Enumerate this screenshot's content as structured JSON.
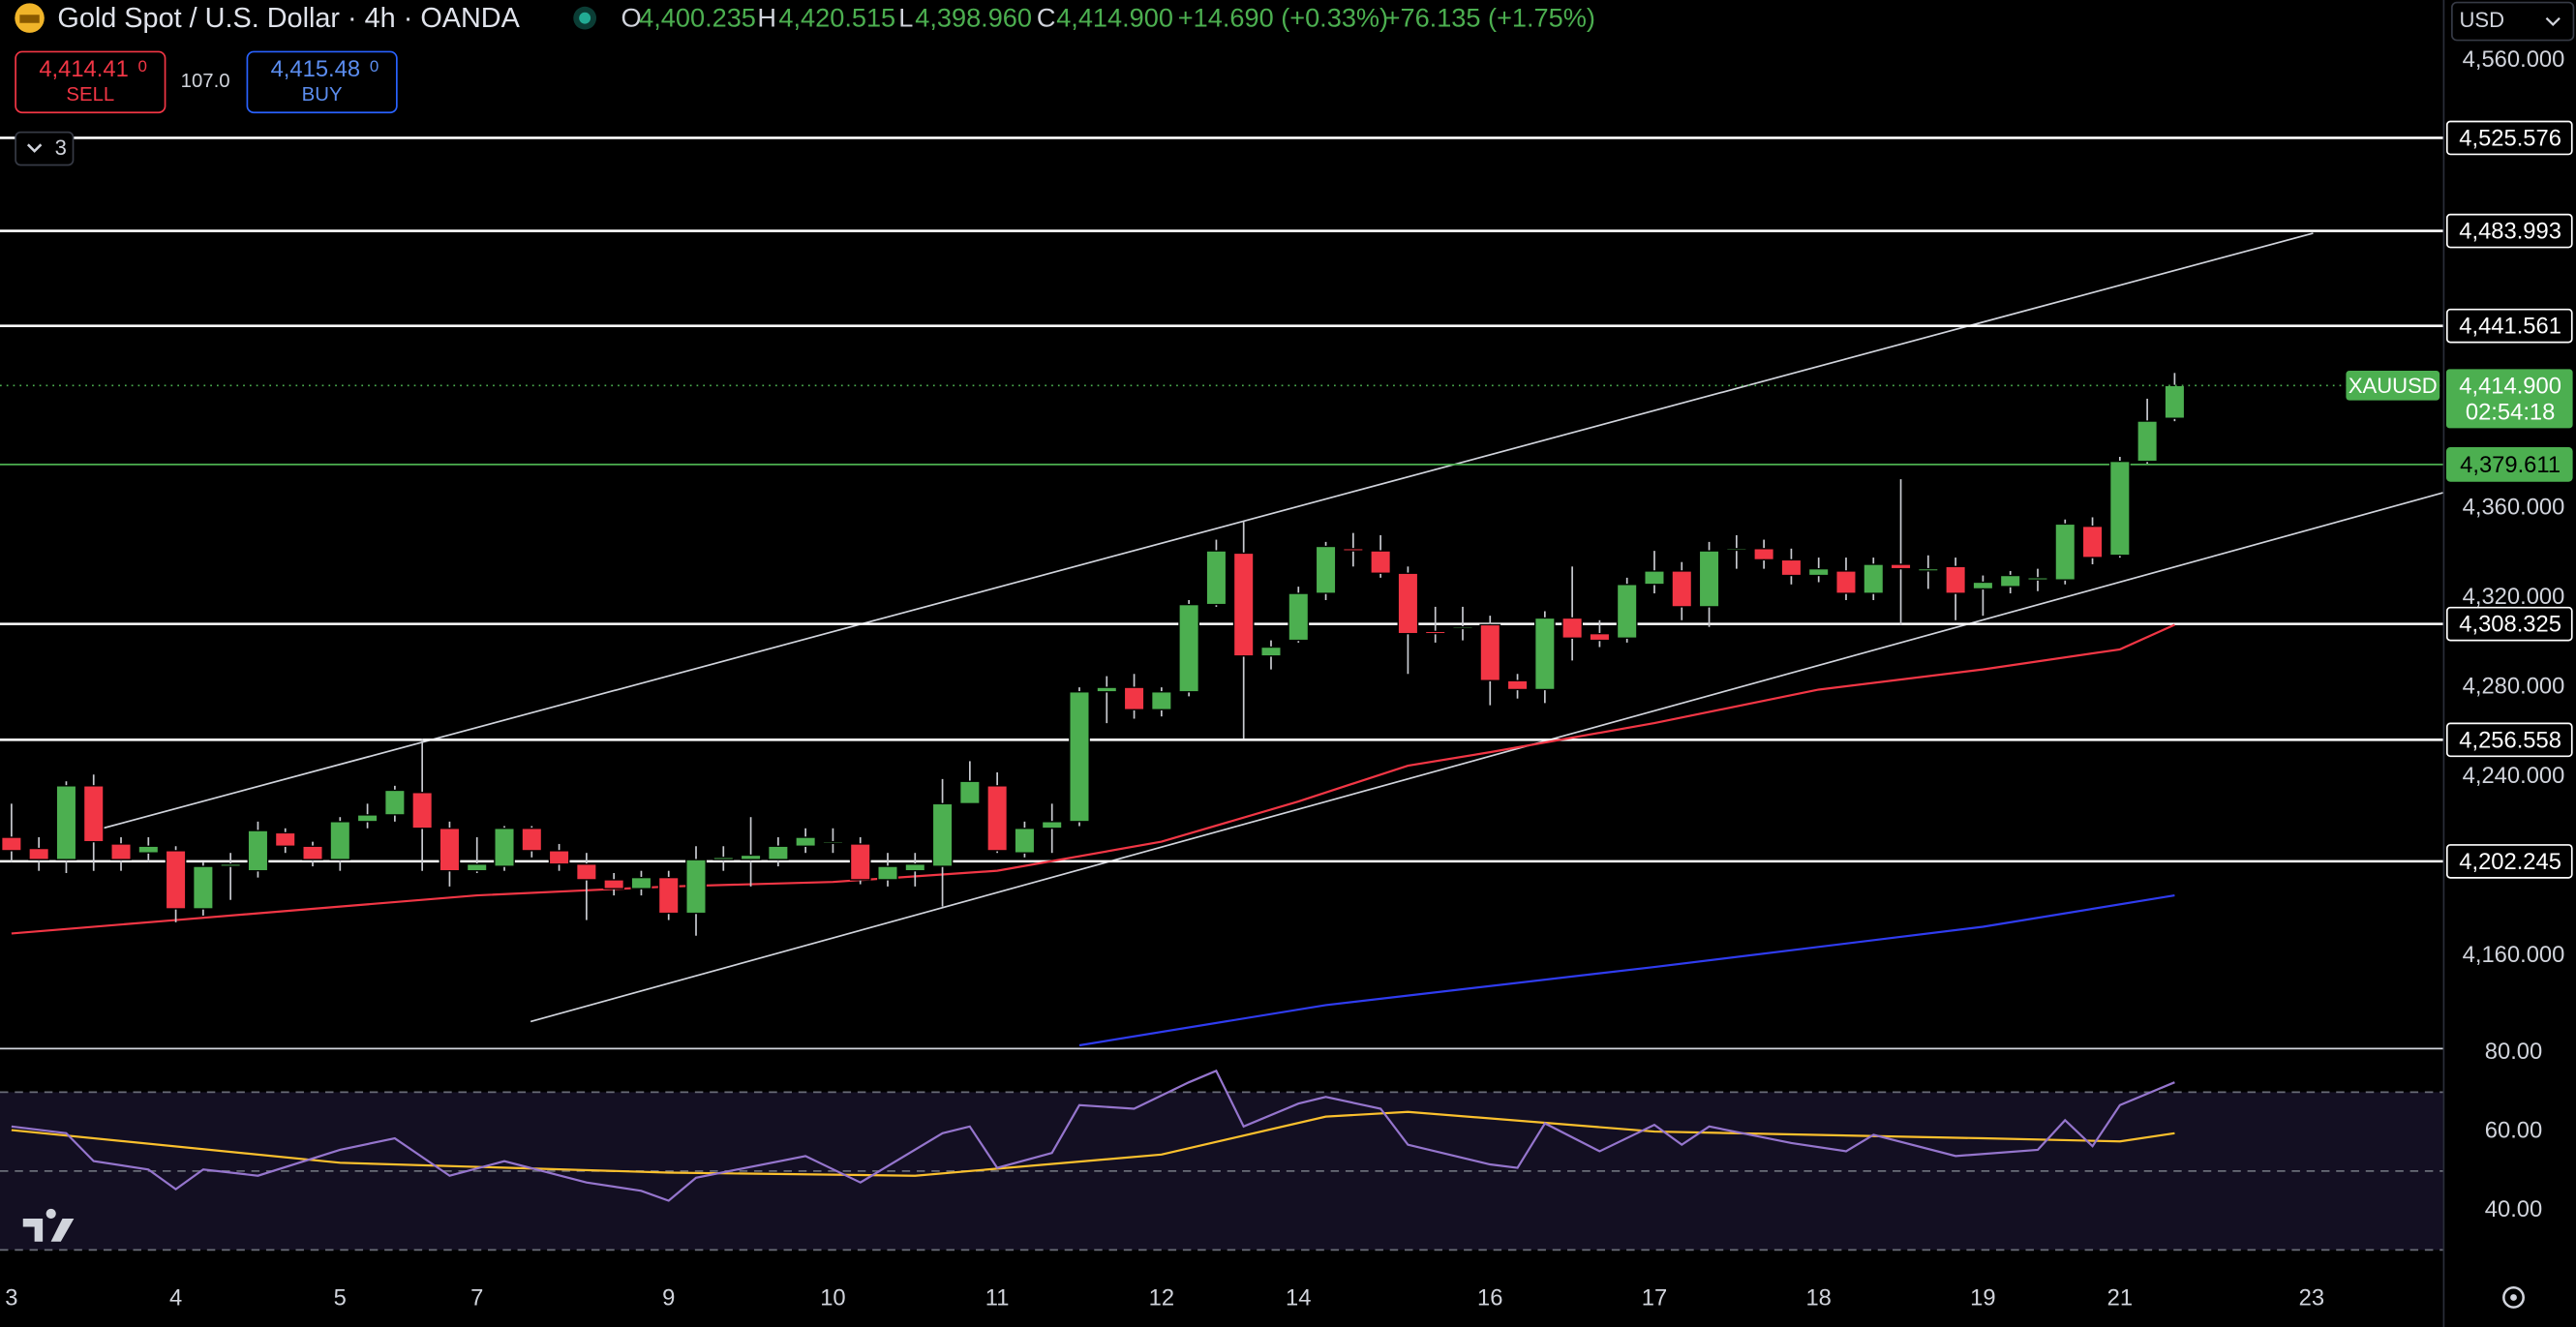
{
  "header": {
    "symbol": "Gold Spot / U.S. Dollar · 4h · OANDA",
    "ohlc": [
      {
        "label": "O",
        "value": "4,400.235"
      },
      {
        "label": "H",
        "value": "4,420.515"
      },
      {
        "label": "L",
        "value": "4,398.960"
      },
      {
        "label": "C",
        "value": "4,414.900"
      }
    ],
    "change": "+14.690 (+0.33%)",
    "change_long": "+76.135 (+1.75%)"
  },
  "trade": {
    "sell_price": "4,414.41",
    "sell_sup": "0",
    "sell_label": "SELL",
    "spread": "107.0",
    "buy_price": "4,415.48",
    "buy_sup": "0",
    "buy_label": "BUY"
  },
  "indicator_count": "3",
  "currency": "USD",
  "chart_data": {
    "type": "candlestick",
    "categories": [
      "3",
      null,
      null,
      null,
      null,
      null,
      "4",
      null,
      null,
      null,
      null,
      null,
      "5",
      null,
      null,
      null,
      null,
      "7",
      null,
      null,
      null,
      null,
      null,
      null,
      "9",
      null,
      null,
      null,
      null,
      null,
      "10",
      null,
      null,
      null,
      null,
      null,
      "11",
      null,
      null,
      null,
      null,
      null,
      "12",
      null,
      null,
      null,
      null,
      "14",
      null,
      null,
      null,
      null,
      null,
      null,
      "16",
      null,
      null,
      null,
      null,
      null,
      "17",
      null,
      null,
      null,
      null,
      null,
      "18",
      null,
      null,
      null,
      null,
      null,
      "19",
      null,
      null,
      null,
      null,
      "21",
      null,
      null,
      null,
      null,
      null,
      null,
      "23"
    ],
    "open": [
      4213,
      4208,
      4203,
      4236,
      4210,
      4206,
      4207,
      4181,
      4200,
      4198,
      4215,
      4209,
      4203,
      4220,
      4223,
      4233,
      4217,
      4198,
      4200,
      4217,
      4207,
      4201,
      4194,
      4190,
      4195,
      4179,
      4203,
      4203,
      4203,
      4209,
      4211,
      4210,
      4194,
      4198,
      4200,
      4228,
      4236,
      4206,
      4217,
      4220,
      4278,
      4280,
      4270,
      4278,
      4317,
      4340,
      4294,
      4301,
      4322,
      4342,
      4341,
      4331,
      4305,
      4307,
      4308,
      4283,
      4279,
      4311,
      4304,
      4302,
      4326,
      4332,
      4316,
      4342,
      4342,
      4337,
      4330,
      4332,
      4322,
      4335,
      4332,
      4334,
      4324,
      4325,
      4328,
      4328,
      4352,
      4339,
      4381,
      4400.235,
      null,
      null,
      null,
      null,
      null
    ],
    "high": [
      4228,
      4213,
      4238,
      4241,
      4213,
      4213,
      4209,
      4202,
      4206,
      4220,
      4217,
      4211,
      4222,
      4228,
      4236,
      4257,
      4220,
      4213,
      4218,
      4218,
      4210,
      4206,
      4197,
      4198,
      4198,
      4209,
      4209,
      4222,
      4213,
      4217,
      4217,
      4213,
      4206,
      4206,
      4239,
      4247,
      4242,
      4220,
      4228,
      4280,
      4285,
      4286,
      4280,
      4319,
      4346,
      4354,
      4301,
      4325,
      4345,
      4349,
      4348,
      4334,
      4316,
      4316,
      4312,
      4286,
      4314,
      4334,
      4310,
      4329,
      4341,
      4336,
      4345,
      4348,
      4346,
      4342,
      4338,
      4338,
      4338,
      4373,
      4339,
      4338,
      4330,
      4332,
      4333,
      4355,
      4356,
      4383,
      4409,
      4420.515,
      null,
      null,
      null,
      null,
      null
    ],
    "low": [
      4202,
      4198,
      4197,
      4198,
      4198,
      4202,
      4175,
      4178,
      4185,
      4195,
      4206,
      4200,
      4198,
      4217,
      4220,
      4198,
      4191,
      4197,
      4198,
      4204,
      4198,
      4176,
      4187,
      4187,
      4176,
      4169,
      4198,
      4191,
      4200,
      4206,
      4206,
      4192,
      4191,
      4191,
      4182,
      4228,
      4206,
      4204,
      4206,
      4218,
      4264,
      4266,
      4267,
      4276,
      4316,
      4257,
      4288,
      4300,
      4319,
      4334,
      4329,
      4286,
      4300,
      4301,
      4272,
      4275,
      4273,
      4292,
      4298,
      4300,
      4322,
      4310,
      4307,
      4333,
      4333,
      4326,
      4327,
      4319,
      4319,
      4308,
      4324,
      4310,
      4312,
      4322,
      4323,
      4326,
      4335,
      4338,
      4380,
      4398.96,
      null,
      null,
      null,
      null,
      null
    ],
    "close": [
      4207,
      4203,
      4236,
      4211,
      4203,
      4209,
      4181,
      4200,
      4201,
      4216,
      4209,
      4203,
      4220,
      4223,
      4234,
      4217,
      4198,
      4201,
      4217,
      4207,
      4201,
      4194,
      4190,
      4195,
      4179,
      4203,
      4204,
      4205,
      4209,
      4213,
      4211,
      4194,
      4200,
      4201,
      4228,
      4238,
      4207,
      4217,
      4220,
      4278,
      4280,
      4270,
      4278,
      4317,
      4341,
      4294,
      4298,
      4322,
      4343,
      4341,
      4331,
      4304,
      4304,
      4307,
      4283,
      4279,
      4311,
      4302,
      4301,
      4326,
      4332,
      4316,
      4341,
      4342,
      4337,
      4330,
      4333,
      4322,
      4335,
      4333,
      4333,
      4322,
      4327,
      4330,
      4329,
      4353,
      4338,
      4381,
      4399,
      4414.9,
      null,
      null,
      null,
      null,
      null
    ],
    "up_color": "#4caf50",
    "down_color": "#f23645",
    "wick_color": "#c8cad0",
    "ylim": [
      4118.9,
      4587.2
    ],
    "yticks": [
      {
        "value": 4560,
        "label": "4,560.000"
      },
      {
        "value": 4360,
        "label": "4,360.000"
      },
      {
        "value": 4320,
        "label": "4,320.000"
      },
      {
        "value": 4280,
        "label": "4,280.000"
      },
      {
        "value": 4240,
        "label": "4,240.000"
      },
      {
        "value": 4160,
        "label": "4,160.000"
      }
    ],
    "levels": [
      {
        "value": 4525.576,
        "label": "4,525.576",
        "color": "#ffffff"
      },
      {
        "value": 4483.993,
        "label": "4,483.993",
        "color": "#ffffff"
      },
      {
        "value": 4441.561,
        "label": "4,441.561",
        "color": "#ffffff"
      },
      {
        "value": 4379.611,
        "label": "4,379.611",
        "color": "#4caf50"
      },
      {
        "value": 4308.325,
        "label": "4,308.325",
        "color": "#ffffff"
      },
      {
        "value": 4256.558,
        "label": "4,256.558",
        "color": "#ffffff"
      },
      {
        "value": 4202.245,
        "label": "4,202.245",
        "color": "#ffffff"
      }
    ],
    "last_price": {
      "name": "XAUUSD",
      "value": 4414.9,
      "label": "4,414.900",
      "countdown": "02:54:18",
      "color": "#4caf50"
    },
    "moving_averages": [
      {
        "color": "#f23645",
        "x": [
          0,
          6,
          12,
          17,
          24,
          30,
          36,
          42,
          47,
          51,
          54,
          60,
          66,
          72,
          77,
          79
        ],
        "values": [
          4170,
          4176,
          4182,
          4187,
          4191,
          4193,
          4198,
          4211,
          4229,
          4245,
          4251,
          4264,
          4279,
          4288,
          4297,
          4308
        ]
      },
      {
        "color": "#2f3cf0",
        "x": [
          39,
          48,
          60,
          72,
          79
        ],
        "values": [
          4120,
          4138,
          4155,
          4173,
          4187
        ]
      }
    ],
    "rsi": {
      "ylim": [
        24.2,
        81.25
      ],
      "yticks": [
        {
          "value": 80,
          "label": "80.00"
        },
        {
          "value": 60,
          "label": "60.00"
        },
        {
          "value": 40,
          "label": "40.00"
        }
      ],
      "levels": [
        70,
        50,
        30
      ],
      "band": [
        30,
        70
      ],
      "line": {
        "color": "#9575cd",
        "x": [
          0,
          2,
          3,
          5,
          6,
          7,
          9,
          12,
          14,
          16,
          18,
          21,
          23,
          24,
          25,
          29,
          31,
          34,
          35,
          36,
          38,
          39,
          41,
          43,
          44,
          45,
          47,
          48,
          50,
          51,
          54,
          55,
          56,
          58,
          60,
          61,
          62,
          65,
          67,
          68,
          71,
          74,
          75,
          76,
          77,
          79
        ],
        "values": [
          61.3,
          59.6,
          52.5,
          50.4,
          45.4,
          50.4,
          48.8,
          55.4,
          58.3,
          48.8,
          52.5,
          47.1,
          45.0,
          42.5,
          48.3,
          53.8,
          47.1,
          59.6,
          61.3,
          50.8,
          54.6,
          66.7,
          65.8,
          72.5,
          75.4,
          61.3,
          67.1,
          68.8,
          65.8,
          56.7,
          51.7,
          50.8,
          62.1,
          55.0,
          61.7,
          56.7,
          61.3,
          57.1,
          55.0,
          59.2,
          53.8,
          55.4,
          62.9,
          56.3,
          66.7,
          72.5
        ]
      },
      "signal": {
        "color": "#fbc02d",
        "x": [
          0,
          12,
          24,
          33,
          42,
          48,
          51,
          60,
          72,
          77,
          79
        ],
        "values": [
          60.4,
          52.1,
          49.6,
          48.8,
          54.2,
          63.8,
          65.0,
          60.0,
          58.3,
          57.5,
          59.6
        ]
      }
    }
  }
}
